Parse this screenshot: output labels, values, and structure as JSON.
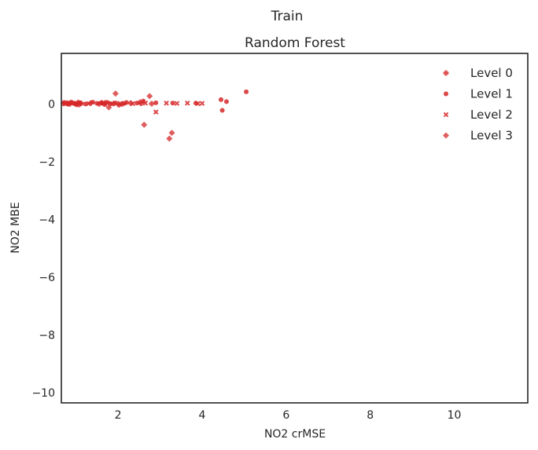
{
  "figure": {
    "suptitle": "Train"
  },
  "chart_data": {
    "type": "scatter",
    "title": "Random Forest",
    "xlabel": "NO2 crMSE",
    "ylabel": "NO2 MBE",
    "xlim": [
      0.65,
      11.75
    ],
    "ylim": [
      -10.35,
      1.75
    ],
    "xticks": [
      2,
      4,
      6,
      8,
      10
    ],
    "yticks": [
      0,
      -2,
      -4,
      -6,
      -8,
      -10
    ],
    "xtick_labels": [
      "2",
      "4",
      "6",
      "8",
      "10"
    ],
    "ytick_labels": [
      "0",
      "−2",
      "−4",
      "−6",
      "−8",
      "−10"
    ],
    "grid": false,
    "legend_position": "top-right",
    "color": "#d62728",
    "series": [
      {
        "name": "Level 0",
        "marker": "plus",
        "points": [
          [
            0.7,
            0.02
          ],
          [
            0.78,
            0.03
          ],
          [
            0.85,
            0.0
          ],
          [
            0.9,
            0.04
          ],
          [
            0.98,
            0.01
          ],
          [
            1.05,
            0.05
          ],
          [
            1.12,
            0.02
          ],
          [
            1.35,
            0.03
          ],
          [
            1.55,
            0.0
          ],
          [
            1.7,
            0.04
          ],
          [
            1.9,
            0.02
          ],
          [
            2.1,
            0.0
          ],
          [
            2.3,
            0.03
          ],
          [
            2.55,
            0.02
          ],
          [
            2.8,
            0.01
          ]
        ]
      },
      {
        "name": "Level 1",
        "marker": "circle",
        "points": [
          [
            0.72,
            0.05
          ],
          [
            0.8,
            0.0
          ],
          [
            0.88,
            0.06
          ],
          [
            0.95,
            0.02
          ],
          [
            1.02,
            -0.03
          ],
          [
            1.1,
            0.04
          ],
          [
            1.22,
            0.0
          ],
          [
            1.4,
            0.06
          ],
          [
            1.5,
            0.02
          ],
          [
            1.6,
            0.04
          ],
          [
            1.68,
            -0.02
          ],
          [
            1.75,
            0.05
          ],
          [
            1.82,
            0.01
          ],
          [
            1.95,
            0.03
          ],
          [
            2.02,
            -0.04
          ],
          [
            2.15,
            0.02
          ],
          [
            2.2,
            0.05
          ],
          [
            2.45,
            0.03
          ],
          [
            2.6,
            0.1
          ],
          [
            2.9,
            0.04
          ],
          [
            3.3,
            0.03
          ],
          [
            3.85,
            0.03
          ],
          [
            4.45,
            0.15
          ],
          [
            4.48,
            -0.22
          ],
          [
            4.58,
            0.08
          ],
          [
            5.05,
            0.42
          ]
        ]
      },
      {
        "name": "Level 2",
        "marker": "x",
        "points": [
          [
            0.75,
            0.0
          ],
          [
            1.0,
            0.02
          ],
          [
            1.3,
            0.01
          ],
          [
            1.65,
            0.03
          ],
          [
            1.85,
            0.0
          ],
          [
            2.05,
            0.02
          ],
          [
            2.35,
            0.01
          ],
          [
            2.65,
            0.03
          ],
          [
            2.9,
            -0.28
          ],
          [
            3.15,
            0.03
          ],
          [
            3.4,
            0.02
          ],
          [
            3.65,
            0.03
          ],
          [
            3.9,
            0.01
          ],
          [
            4.0,
            0.02
          ]
        ]
      },
      {
        "name": "Level 3",
        "marker": "diamond",
        "points": [
          [
            0.82,
            0.01
          ],
          [
            1.08,
            -0.02
          ],
          [
            1.62,
            0.04
          ],
          [
            1.78,
            -0.12
          ],
          [
            1.94,
            0.36
          ],
          [
            2.52,
            0.06
          ],
          [
            2.62,
            -0.72
          ],
          [
            2.75,
            0.27
          ],
          [
            3.22,
            -1.2
          ],
          [
            3.28,
            -1.0
          ]
        ]
      }
    ]
  }
}
